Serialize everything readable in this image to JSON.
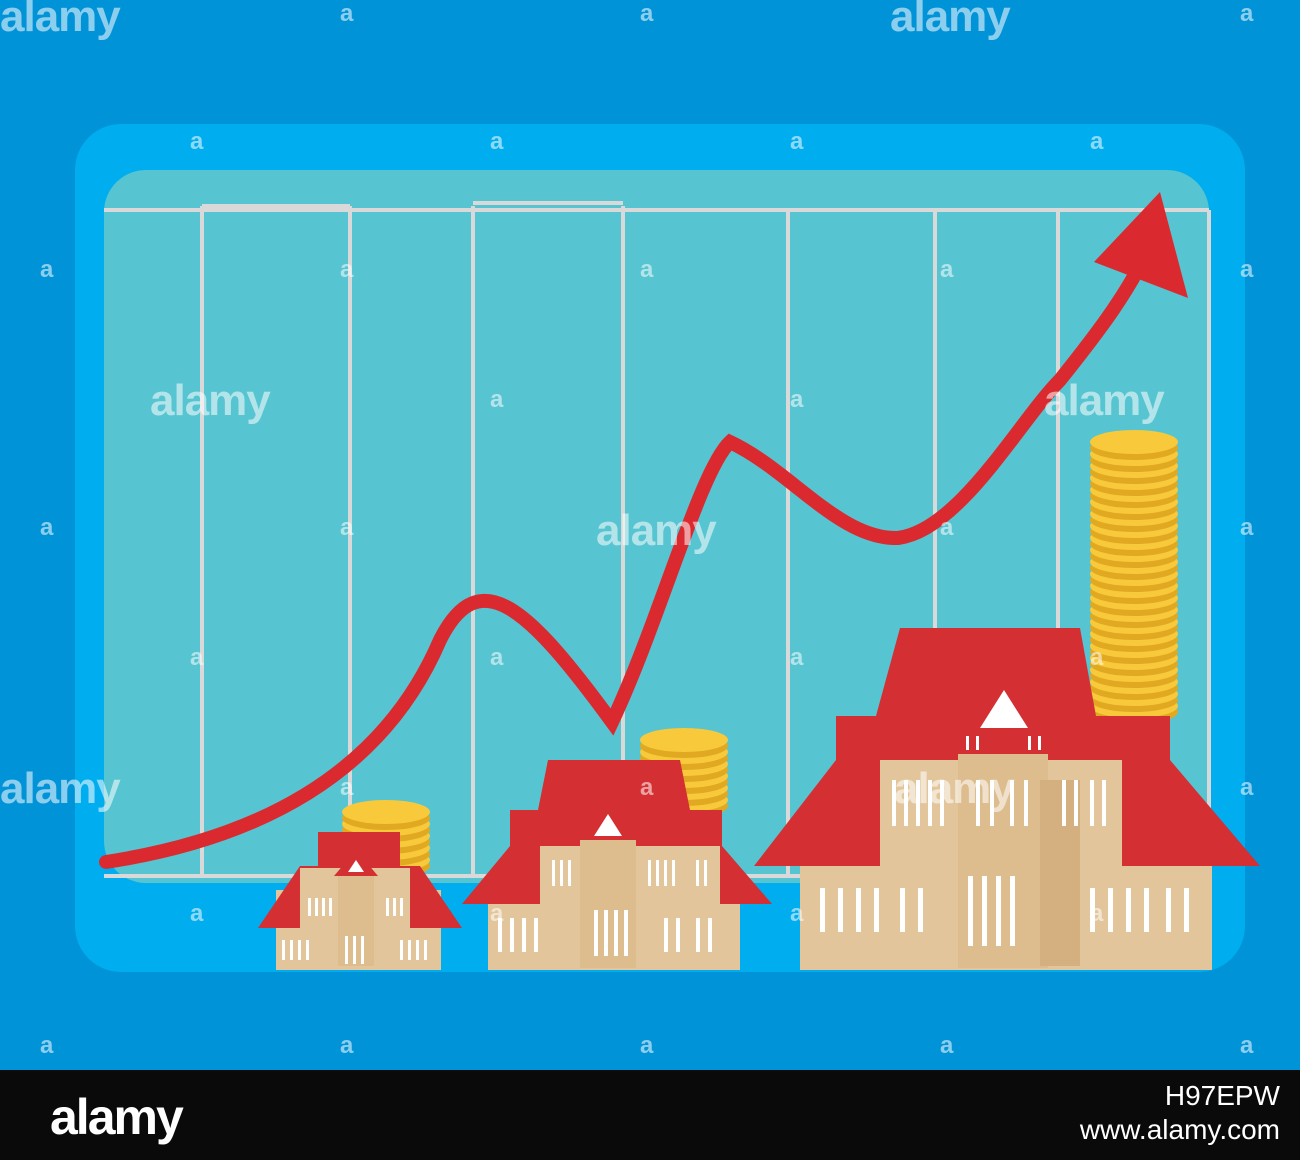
{
  "colors": {
    "background": "#0193d7",
    "board_outer": "#00adef",
    "board_inner": "#56c4d1",
    "grid_line": "#d9d9d9",
    "arrow": "#db2a2f",
    "roof": "#d42f33",
    "wall": "#e2c59a",
    "coin": "#f8c93a",
    "footer": "#0a0a0a"
  },
  "icons": {
    "arrow": "rising-arrow-icon",
    "house": "house-icon",
    "coins": "coin-stack-icon"
  },
  "watermark": {
    "word": "alamy",
    "letter": "a"
  },
  "footer": {
    "logo": "alamy",
    "image_id": "H97EPW",
    "url": "www.alamy.com"
  }
}
